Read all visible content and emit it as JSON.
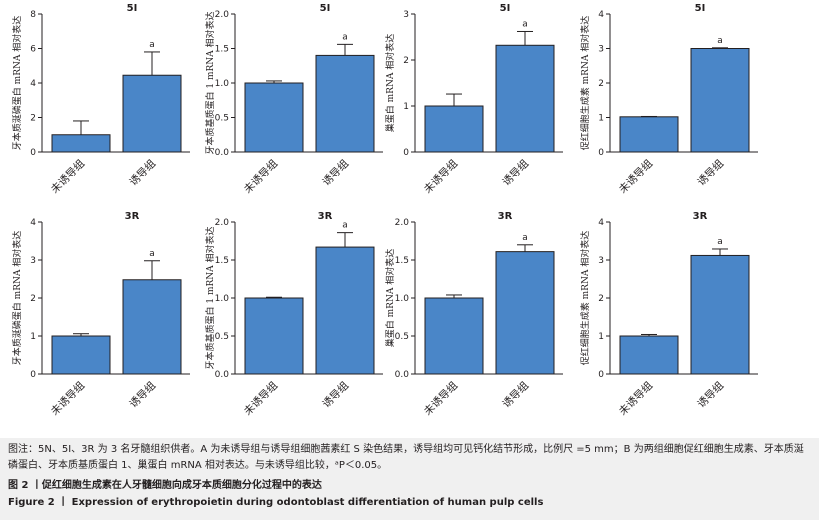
{
  "chart_data": [
    {
      "type": "bar",
      "title": "5I",
      "ylabel": "牙本质涎磷蛋白 mRNA 相对表达",
      "categories": [
        "未诱导组",
        "诱导组"
      ],
      "values": [
        1.0,
        4.45
      ],
      "errors": [
        0.8,
        1.35
      ],
      "ylim": [
        0,
        8
      ],
      "yticks": [
        0,
        2,
        4,
        6,
        8
      ],
      "annotations": [
        "",
        "a"
      ]
    },
    {
      "type": "bar",
      "title": "5I",
      "ylabel": "牙本质基质蛋白 1 mRNA 相对表达",
      "categories": [
        "未诱导组",
        "诱导组"
      ],
      "values": [
        1.0,
        1.4
      ],
      "errors": [
        0.03,
        0.16
      ],
      "ylim": [
        0,
        2.0
      ],
      "yticks": [
        0,
        0.5,
        1.0,
        1.5,
        2.0
      ],
      "annotations": [
        "",
        "a"
      ]
    },
    {
      "type": "bar",
      "title": "5I",
      "ylabel": "巢蛋白 mRNA 相对表达",
      "categories": [
        "未诱导组",
        "诱导组"
      ],
      "values": [
        1.0,
        2.32
      ],
      "errors": [
        0.26,
        0.3
      ],
      "ylim": [
        0,
        3
      ],
      "yticks": [
        0,
        1,
        2,
        3
      ],
      "annotations": [
        "",
        "a"
      ]
    },
    {
      "type": "bar",
      "title": "5I",
      "ylabel": "促红细胞生成素 mRNA 相对表达",
      "categories": [
        "未诱导组",
        "诱导组"
      ],
      "values": [
        1.02,
        3.0
      ],
      "errors": [
        0.01,
        0.02
      ],
      "ylim": [
        0,
        4
      ],
      "yticks": [
        0,
        1,
        2,
        3,
        4
      ],
      "annotations": [
        "",
        "a"
      ]
    },
    {
      "type": "bar",
      "title": "3R",
      "ylabel": "牙本质涎磷蛋白 mRNA 相对表达",
      "categories": [
        "未诱导组",
        "诱导组"
      ],
      "values": [
        1.0,
        2.48
      ],
      "errors": [
        0.06,
        0.5
      ],
      "ylim": [
        0,
        4
      ],
      "yticks": [
        0,
        1,
        2,
        3,
        4
      ],
      "annotations": [
        "",
        "a"
      ]
    },
    {
      "type": "bar",
      "title": "3R",
      "ylabel": "牙本质基质蛋白 1 mRNA 相对表达",
      "categories": [
        "未诱导组",
        "诱导组"
      ],
      "values": [
        1.0,
        1.67
      ],
      "errors": [
        0.01,
        0.19
      ],
      "ylim": [
        0,
        2.0
      ],
      "yticks": [
        0,
        0.5,
        1.0,
        1.5,
        2.0
      ],
      "annotations": [
        "",
        "a"
      ]
    },
    {
      "type": "bar",
      "title": "3R",
      "ylabel": "巢蛋白 mRNA 相对表达",
      "categories": [
        "未诱导组",
        "诱导组"
      ],
      "values": [
        1.0,
        1.61
      ],
      "errors": [
        0.04,
        0.09
      ],
      "ylim": [
        0,
        2.0
      ],
      "yticks": [
        0,
        0.5,
        1.0,
        1.5,
        2.0
      ],
      "annotations": [
        "",
        "a"
      ]
    },
    {
      "type": "bar",
      "title": "3R",
      "ylabel": "促红细胞生成素 mRNA 相对表达",
      "categories": [
        "未诱导组",
        "诱导组"
      ],
      "values": [
        1.0,
        3.12
      ],
      "errors": [
        0.04,
        0.17
      ],
      "ylim": [
        0,
        4
      ],
      "yticks": [
        0,
        1,
        2,
        3,
        4
      ],
      "annotations": [
        "",
        "a"
      ]
    }
  ],
  "colors": {
    "bar_fill": "#4a86c8",
    "bar_stroke": "#231f20",
    "caption_bg": "#f0f0f0"
  },
  "caption": {
    "note": "图注：5N、5I、3R 为 3 名牙髓组织供者。A 为未诱导组与诱导组细胞茜素红 S 染色结果，诱导组均可见钙化结节形成，比例尺 =5 mm；B 为两组细胞促红细胞生成素、牙本质涎磷蛋白、牙本质基质蛋白 1、巢蛋白 mRNA 相对表达。与未诱导组比较，ᵃP＜0.05。",
    "cn_title": "图 2 丨促红细胞生成素在人牙髓细胞向成牙本质细胞分化过程中的表达",
    "en_title": "Figure 2 丨 Expression of erythropoietin during odontoblast differentiation of human pulp cells"
  }
}
